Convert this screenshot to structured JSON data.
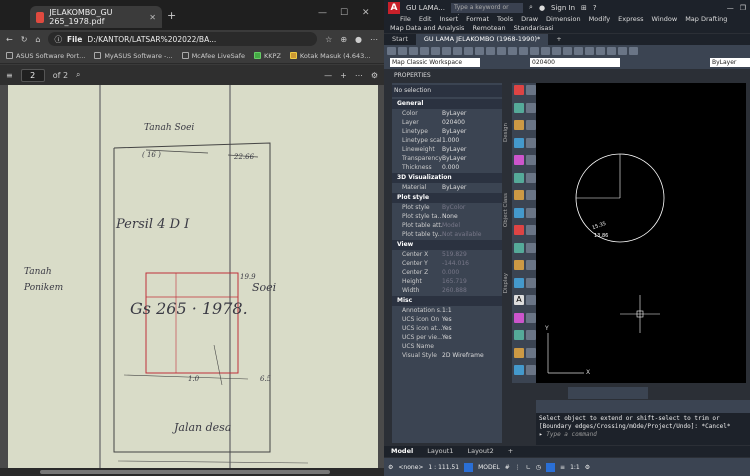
{
  "browser": {
    "tab_title": "JELAKOMBO_GU 265_1978.pdf",
    "address": "D:/KANTOR/LATSAR%202022/BA...",
    "address_prefix": "File",
    "bookmarks": [
      "ASUS Software Port...",
      "MyASUS Software -...",
      "McAfee LiveSafe",
      "KKPZ",
      "Kotak Masuk (4.643..."
    ],
    "page_current": "2",
    "page_total": "of 2",
    "zoom_minus": "—",
    "zoom_plus": "+"
  },
  "scan": {
    "top_label": "Tanah  Soei",
    "dim_top_left": "( 16 )",
    "dim_top_right": "22.66",
    "parcel": "Persil 4 D I",
    "left_label_1": "Tanah",
    "left_label_2": "Ponikem",
    "gs": "Gs  265 · 1978.",
    "right_label": "Soei",
    "side_dim": "19.9",
    "bottom_dim_left": "1.0",
    "bottom_dim_right": "6.5",
    "bottom_label": "Jalan  desa"
  },
  "autocad": {
    "title_short": "GU LAMA...",
    "keyword_placeholder": "Type a keyword or phrase",
    "sign_in": "Sign In",
    "menus": [
      "File",
      "Edit",
      "Insert",
      "Format",
      "Tools",
      "Draw",
      "Dimension",
      "Modify",
      "Express",
      "Window",
      "Map Drafting"
    ],
    "menus2": [
      "Map Data and Analysis",
      "Remotean",
      "Standarisasi"
    ],
    "file_tabs": [
      "Start",
      "GU LAMA JELAKOMBO (1968-1990)*"
    ],
    "workspace": "Map Classic Workspace",
    "layer_value": "020400",
    "bylayer_value": "ByLayer",
    "properties_title": "PROPERTIES",
    "selection": "No selection",
    "general": {
      "title": "General",
      "rows": [
        [
          "Color",
          "ByLayer"
        ],
        [
          "Layer",
          "020400"
        ],
        [
          "Linetype",
          "ByLayer"
        ],
        [
          "Linetype scale",
          "1.000"
        ],
        [
          "Lineweight",
          "ByLayer"
        ],
        [
          "Transparency",
          "ByLayer"
        ],
        [
          "Thickness",
          "0.000"
        ]
      ]
    },
    "viz3d": {
      "title": "3D Visualization",
      "rows": [
        [
          "Material",
          "ByLayer"
        ]
      ]
    },
    "plot": {
      "title": "Plot style",
      "rows": [
        [
          "Plot style",
          "ByColor"
        ],
        [
          "Plot style ta...",
          "None"
        ],
        [
          "Plot table att...",
          "Model"
        ],
        [
          "Plot table ty...",
          "Not available"
        ]
      ]
    },
    "view": {
      "title": "View",
      "rows": [
        [
          "Center X",
          "519.829"
        ],
        [
          "Center Y",
          "-144.016"
        ],
        [
          "Center Z",
          "0.000"
        ],
        [
          "Height",
          "165.719"
        ],
        [
          "Width",
          "260.888"
        ]
      ]
    },
    "misc": {
      "title": "Misc",
      "rows": [
        [
          "Annotation s...",
          "1:1"
        ],
        [
          "UCS icon On",
          "Yes"
        ],
        [
          "UCS icon at...",
          "Yes"
        ],
        [
          "UCS per vie...",
          "Yes"
        ],
        [
          "UCS Name",
          ""
        ],
        [
          "Visual Style",
          "2D Wireframe"
        ]
      ]
    },
    "side_tabs": [
      "Design",
      "Object Class",
      "Display"
    ],
    "canvas_label_1": "15.35",
    "canvas_label_2": "13.86",
    "ucs_y": "Y",
    "ucs_x": "X",
    "cmd_line_1": "Select object to extend or shift-select to trim or",
    "cmd_line_2": "[Boundary edges/Crossing/mOde/Project/Undo]: *Cancel*",
    "cmd_placeholder": "Type a command",
    "layout_tabs": [
      "Model",
      "Layout1",
      "Layout2"
    ],
    "status_none": "<none>",
    "status_scale": "1 : 111.51",
    "status_model": "MODEL",
    "status_zoom": "1:1"
  }
}
